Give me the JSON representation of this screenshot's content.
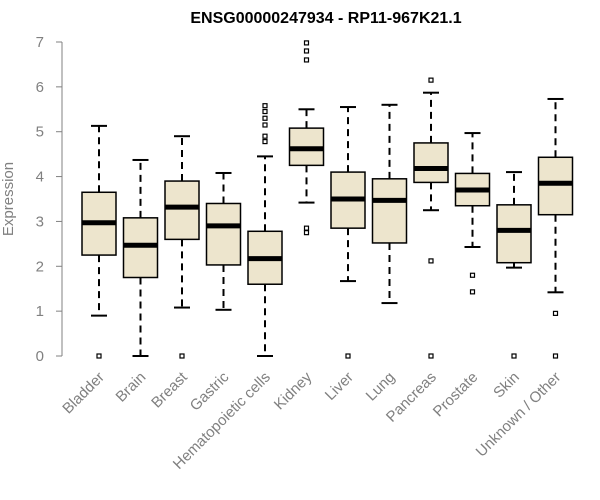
{
  "chart_data": {
    "type": "boxplot",
    "title": "ENSG00000247934 - RP11-967K21.1",
    "xlabel": "",
    "ylabel": "Expression",
    "ylim": [
      0,
      7
    ],
    "yticks": [
      0,
      1,
      2,
      3,
      4,
      5,
      6,
      7
    ],
    "box_color": "#ede5cd",
    "axis_color": "#808080",
    "categories": [
      "Bladder",
      "Brain",
      "Breast",
      "Gastric",
      "Hematopoietic cells",
      "Kidney",
      "Liver",
      "Lung",
      "Pancreas",
      "Prostate",
      "Skin",
      "Unknown / Other"
    ],
    "boxes": [
      {
        "name": "Bladder",
        "whisker_low": 0.9,
        "q1": 2.25,
        "median": 2.97,
        "q3": 3.65,
        "whisker_high": 5.13,
        "outliers": [
          0
        ]
      },
      {
        "name": "Brain",
        "whisker_low": 0.0,
        "q1": 1.75,
        "median": 2.47,
        "q3": 3.08,
        "whisker_high": 4.37,
        "outliers": []
      },
      {
        "name": "Breast",
        "whisker_low": 1.08,
        "q1": 2.6,
        "median": 3.32,
        "q3": 3.9,
        "whisker_high": 4.9,
        "outliers": [
          0
        ]
      },
      {
        "name": "Gastric",
        "whisker_low": 1.03,
        "q1": 2.03,
        "median": 2.9,
        "q3": 3.4,
        "whisker_high": 4.08,
        "outliers": []
      },
      {
        "name": "Hematopoietic cells",
        "whisker_low": 0.0,
        "q1": 1.6,
        "median": 2.17,
        "q3": 2.78,
        "whisker_high": 4.45,
        "outliers": [
          4.78,
          4.9,
          5.15,
          5.3,
          5.45,
          5.58
        ]
      },
      {
        "name": "Kidney",
        "whisker_low": 3.42,
        "q1": 4.25,
        "median": 4.62,
        "q3": 5.08,
        "whisker_high": 5.5,
        "outliers": [
          2.75,
          2.85,
          6.6,
          6.8,
          6.98
        ]
      },
      {
        "name": "Liver",
        "whisker_low": 1.67,
        "q1": 2.85,
        "median": 3.5,
        "q3": 4.1,
        "whisker_high": 5.55,
        "outliers": [
          0
        ]
      },
      {
        "name": "Lung",
        "whisker_low": 1.18,
        "q1": 2.52,
        "median": 3.47,
        "q3": 3.95,
        "whisker_high": 5.6,
        "outliers": []
      },
      {
        "name": "Pancreas",
        "whisker_low": 3.25,
        "q1": 3.87,
        "median": 4.18,
        "q3": 4.75,
        "whisker_high": 5.87,
        "outliers": [
          6.15,
          2.12,
          0
        ]
      },
      {
        "name": "Prostate",
        "whisker_low": 2.43,
        "q1": 3.35,
        "median": 3.7,
        "q3": 4.07,
        "whisker_high": 4.97,
        "outliers": [
          1.8,
          1.43
        ]
      },
      {
        "name": "Skin",
        "whisker_low": 1.97,
        "q1": 2.08,
        "median": 2.8,
        "q3": 3.37,
        "whisker_high": 4.1,
        "outliers": [
          0
        ]
      },
      {
        "name": "Unknown / Other",
        "whisker_low": 1.42,
        "q1": 3.15,
        "median": 3.85,
        "q3": 4.43,
        "whisker_high": 5.73,
        "outliers": [
          0.95,
          0
        ]
      }
    ]
  }
}
